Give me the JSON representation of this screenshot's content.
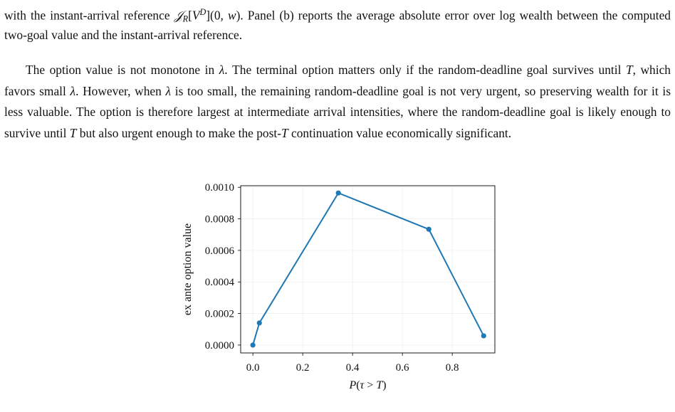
{
  "paragraphs": [
    {
      "segments": [
        {
          "text": "with the instant-arrival reference "
        },
        {
          "text": "𝒥",
          "style": "italic"
        },
        {
          "text": "R",
          "style": "sub"
        },
        {
          "text": "["
        },
        {
          "text": "V",
          "style": "italic"
        },
        {
          "text": "D",
          "style": "sup"
        },
        {
          "text": "](0, "
        },
        {
          "text": "w",
          "style": "italic"
        },
        {
          "text": "). Panel (b) reports the average absolute error over log wealth between the computed two-goal value and the instant-arrival reference."
        }
      ]
    },
    {
      "segments": [
        {
          "text": "The option value is not monotone in "
        },
        {
          "text": "λ",
          "style": "italic"
        },
        {
          "text": ". The terminal option matters only if the random-deadline goal survives until "
        },
        {
          "text": "T",
          "style": "italic"
        },
        {
          "text": ", which favors small "
        },
        {
          "text": "λ",
          "style": "italic"
        },
        {
          "text": ". However, when "
        },
        {
          "text": "λ",
          "style": "italic"
        },
        {
          "text": " is too small, the remaining random-deadline goal is not very urgent, so preserving wealth for it is less valuable. The option is therefore largest at intermediate arrival intensities, where the random-deadline goal is likely enough to survive until "
        },
        {
          "text": "T",
          "style": "italic"
        },
        {
          "text": " but also urgent enough to make the post-"
        },
        {
          "text": "T",
          "style": "italic"
        },
        {
          "text": " continuation value economically significant."
        }
      ]
    }
  ],
  "chart_data": {
    "type": "line",
    "y_label": "ex ante option value",
    "x_label": [
      {
        "text": "P",
        "style": "italic"
      },
      {
        "text": "("
      },
      {
        "text": "τ",
        "style": "italic"
      },
      {
        "text": " > "
      },
      {
        "text": "T",
        "style": "italic"
      },
      {
        "text": ")"
      }
    ],
    "x": [
      0.0,
      0.026,
      0.343,
      0.706,
      0.926
    ],
    "series": [
      {
        "color": "#1f77b4",
        "values": [
          0.0,
          0.00014,
          0.000964,
          0.000734,
          5.86e-05
        ]
      }
    ],
    "xlim": [
      -0.049,
      0.971
    ],
    "ylim": [
      -5e-05,
      0.00101
    ],
    "xticks": [
      {
        "value": 0,
        "label": "0.0"
      },
      {
        "value": 0.2,
        "label": "0.2"
      },
      {
        "value": 0.4,
        "label": "0.4"
      },
      {
        "value": 0.6,
        "label": "0.6"
      },
      {
        "value": 0.8,
        "label": "0.8"
      }
    ],
    "yticks": [
      {
        "value": 0,
        "label": "0.0000"
      },
      {
        "value": 0.0002,
        "label": "0.0002"
      },
      {
        "value": 0.0004,
        "label": "0.0004"
      },
      {
        "value": 0.0006,
        "label": "0.0006"
      },
      {
        "value": 0.0008,
        "label": "0.0008"
      },
      {
        "value": 0.001,
        "label": "0.0010"
      }
    ],
    "grid": true
  }
}
